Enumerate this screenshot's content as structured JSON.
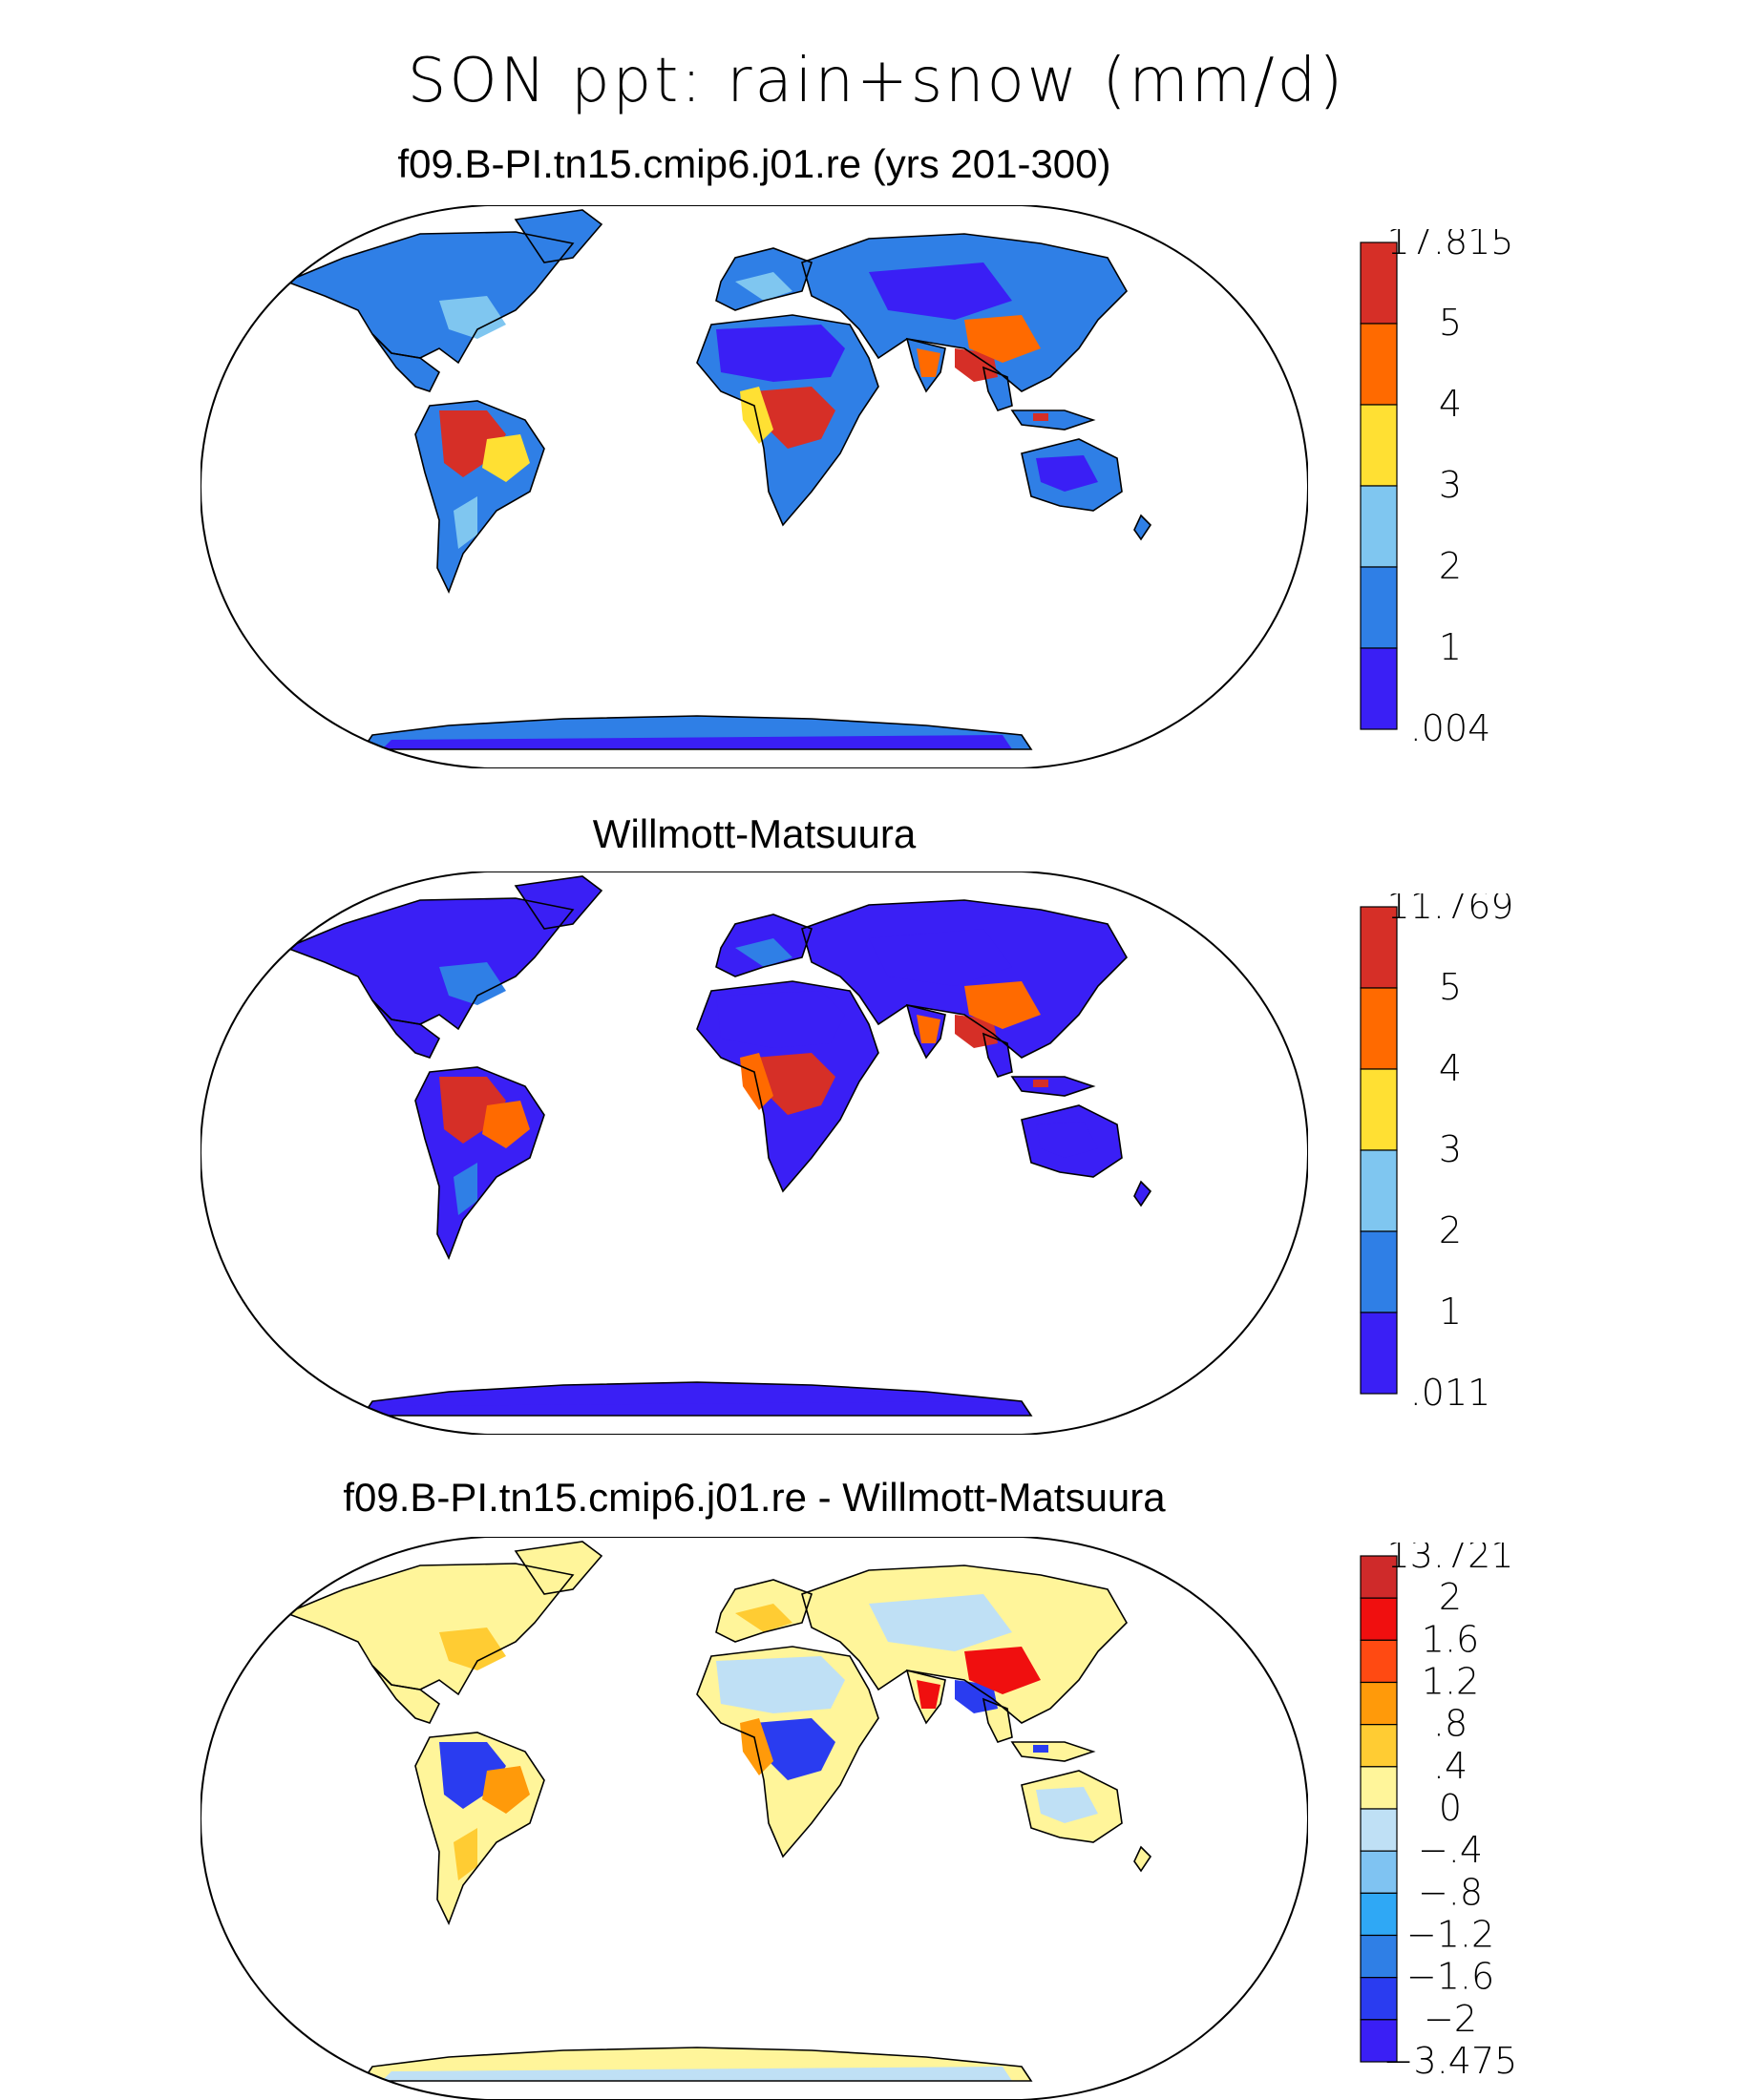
{
  "figure": {
    "title": "SON ppt: rain+snow (mm/d)"
  },
  "panels": [
    {
      "title": "f09.B-PI.tn15.cmip6.j01.re (yrs 201-300)",
      "colorbar": {
        "labels": [
          "17.815",
          "5",
          "4",
          "3",
          "2",
          "1",
          ".004"
        ],
        "colors": [
          "#d62f27",
          "#ff6a00",
          "#ffe033",
          "#7fc6f0",
          "#2f7fe6",
          "#3a1ff5"
        ]
      },
      "land_fill": {
        "default": "#2f7fe6",
        "tropics_wet": "#d62f27",
        "tropics_mod": "#ffe033",
        "arid": "#3a1ff5",
        "moist_mid": "#7fc6f0",
        "monsoon": "#ff6a00"
      }
    },
    {
      "title": "Willmott-Matsuura",
      "colorbar": {
        "labels": [
          "11.769",
          "5",
          "4",
          "3",
          "2",
          "1",
          ".011"
        ],
        "colors": [
          "#d62f27",
          "#ff6a00",
          "#ffe033",
          "#7fc6f0",
          "#2f7fe6",
          "#3a1ff5"
        ]
      },
      "land_fill": {
        "default": "#3a1ff5",
        "tropics_wet": "#d62f27",
        "tropics_mod": "#ff6a00",
        "arid": "#3a1ff5",
        "moist_mid": "#2f7fe6",
        "monsoon": "#ff6a00"
      }
    },
    {
      "title": "f09.B-PI.tn15.cmip6.j01.re - Willmott-Matsuura",
      "colorbar": {
        "labels": [
          "13.721",
          "2",
          "1.6",
          "1.2",
          ".8",
          ".4",
          "0",
          "−.4",
          "−.8",
          "−1.2",
          "−1.6",
          "−2",
          "−3.475"
        ],
        "colors": [
          "#cf2a2a",
          "#f00f0f",
          "#ff4a12",
          "#ff9a0a",
          "#ffcc33",
          "#fff59a",
          "#bfe0f5",
          "#7fc3f2",
          "#2fa8f5",
          "#2f7fe6",
          "#2a3cf0",
          "#3a1ff5"
        ]
      },
      "land_fill": {
        "default": "#fff59a",
        "tropics_wet": "#2a3cf0",
        "tropics_mod": "#ff9a0a",
        "arid": "#bfe0f5",
        "moist_mid": "#ffcc33",
        "monsoon": "#f00f0f"
      }
    }
  ]
}
